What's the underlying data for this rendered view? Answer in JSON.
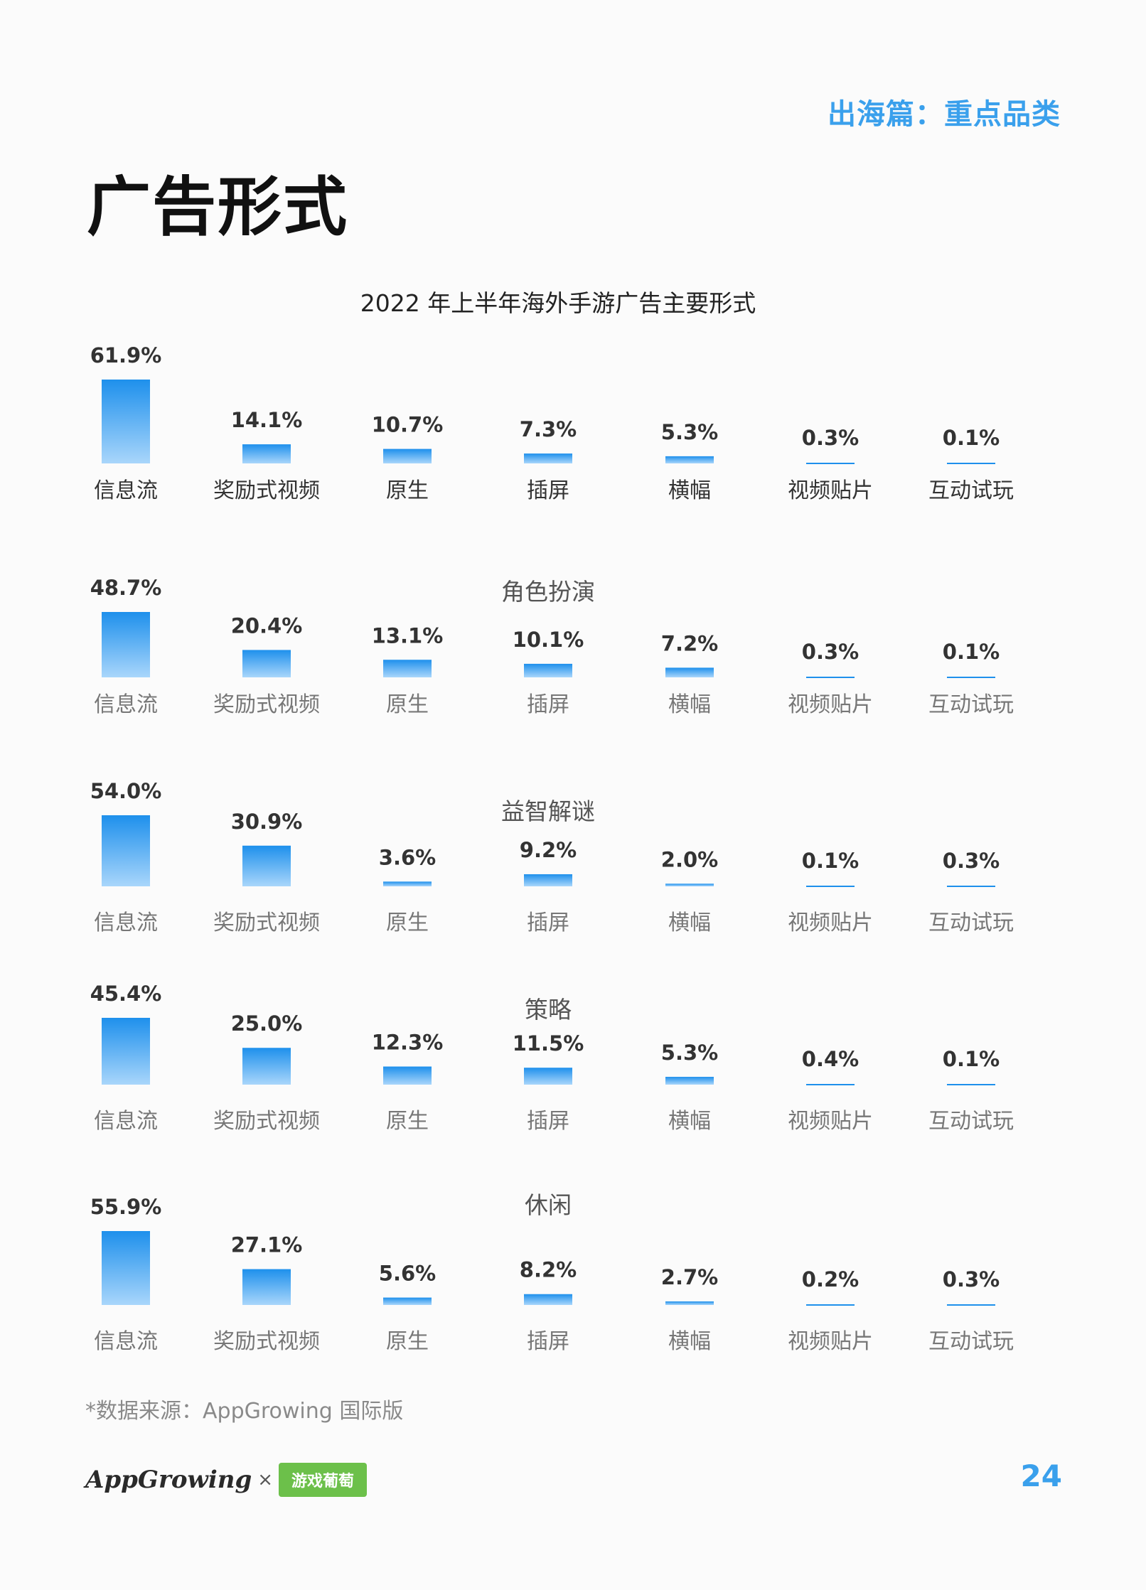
{
  "header": {
    "section_label": "出海篇：重点品类",
    "title": "广告形式"
  },
  "chart_title": "2022 年上半年海外手游广告主要形式",
  "chart_data": [
    {
      "type": "bar",
      "title": "",
      "categories": [
        "信息流",
        "奖励式视频",
        "原生",
        "插屏",
        "横幅",
        "视频贴片",
        "互动试玩"
      ],
      "values": [
        61.9,
        14.1,
        10.7,
        7.3,
        5.3,
        0.3,
        0.1
      ],
      "labels": [
        "61.9%",
        "14.1%",
        "10.7%",
        "7.3%",
        "5.3%",
        "0.3%",
        "0.1%"
      ]
    },
    {
      "type": "bar",
      "title": "角色扮演",
      "categories": [
        "信息流",
        "奖励式视频",
        "原生",
        "插屏",
        "横幅",
        "视频贴片",
        "互动试玩"
      ],
      "values": [
        48.7,
        20.4,
        13.1,
        10.1,
        7.2,
        0.3,
        0.1
      ],
      "labels": [
        "48.7%",
        "20.4%",
        "13.1%",
        "10.1%",
        "7.2%",
        "0.3%",
        "0.1%"
      ]
    },
    {
      "type": "bar",
      "title": "益智解谜",
      "categories": [
        "信息流",
        "奖励式视频",
        "原生",
        "插屏",
        "横幅",
        "视频贴片",
        "互动试玩"
      ],
      "values": [
        54.0,
        30.9,
        3.6,
        9.2,
        2.0,
        0.1,
        0.3
      ],
      "labels": [
        "54.0%",
        "30.9%",
        "3.6%",
        "9.2%",
        "2.0%",
        "0.1%",
        "0.3%"
      ]
    },
    {
      "type": "bar",
      "title": "策略",
      "categories": [
        "信息流",
        "奖励式视频",
        "原生",
        "插屏",
        "横幅",
        "视频贴片",
        "互动试玩"
      ],
      "values": [
        45.4,
        25.0,
        12.3,
        11.5,
        5.3,
        0.4,
        0.1
      ],
      "labels": [
        "45.4%",
        "25.0%",
        "12.3%",
        "11.5%",
        "5.3%",
        "0.4%",
        "0.1%"
      ]
    },
    {
      "type": "bar",
      "title": "休闲",
      "categories": [
        "信息流",
        "奖励式视频",
        "原生",
        "插屏",
        "横幅",
        "视频贴片",
        "互动试玩"
      ],
      "values": [
        55.9,
        27.1,
        5.6,
        8.2,
        2.7,
        0.2,
        0.3
      ],
      "labels": [
        "55.9%",
        "27.1%",
        "5.6%",
        "8.2%",
        "2.7%",
        "0.2%",
        "0.3%"
      ]
    }
  ],
  "colors": {
    "bar_top": "#1e90ec",
    "bar_bottom": "#a9d6fb",
    "accent": "#3aa0ec"
  },
  "footer": {
    "source": "*数据来源：AppGrowing 国际版",
    "logo_appgrowing": "AppGrowing",
    "logo_times": "×",
    "logo_youxi": "游戏葡萄",
    "page_number": "24"
  }
}
